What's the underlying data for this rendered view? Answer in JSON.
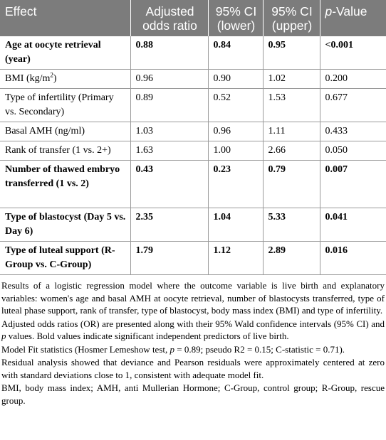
{
  "headers": {
    "effect": "Effect",
    "or_line1": "Adjusted",
    "or_line2": "odds ratio",
    "lower_line1": "95% CI",
    "lower_line2": "(lower)",
    "upper_line1": "95% CI",
    "upper_line2": "(upper)",
    "p_italic": "p",
    "p_rest": "-Value"
  },
  "rows": [
    {
      "effect": "Age at oocyte retrieval (year)",
      "or": "0.88",
      "lower": "0.84",
      "upper": "0.95",
      "p": "<0.001"
    },
    {
      "effect_pre": "BMI (kg/m",
      "effect_sup": "2",
      "effect_post": ")",
      "or": "0.96",
      "lower": "0.90",
      "upper": "1.02",
      "p": "0.200"
    },
    {
      "effect": "Type of infertility (Primary vs. Secondary)",
      "or": "0.89",
      "lower": "0.52",
      "upper": "1.53",
      "p": "0.677"
    },
    {
      "effect": "Basal AMH (ng/ml)",
      "or": "1.03",
      "lower": "0.96",
      "upper": "1.11",
      "p": "0.433"
    },
    {
      "effect": "Rank of transfer (1 vs. 2+)",
      "or": "1.63",
      "lower": "1.00",
      "upper": "2.66",
      "p": "0.050"
    },
    {
      "effect": "Number of thawed embryo transferred (1 vs. 2)",
      "or": "0.43",
      "lower": "0.23",
      "upper": "0.79",
      "p": "0.007"
    },
    {
      "effect": "Type of blastocyst (Day 5 vs. Day 6)",
      "or": "2.35",
      "lower": "1.04",
      "upper": "5.33",
      "p": "0.041"
    },
    {
      "effect": "Type of luteal support (R-Group vs. C-Group)",
      "or": "1.79",
      "lower": "1.12",
      "upper": "2.89",
      "p": "0.016"
    }
  ],
  "notes": {
    "n1": "Results of a logistic regression model where the outcome variable is live birth and explanatory variables: women's age and basal AMH at oocyte retrieval, number of blastocysts transferred, type of luteal phase support, rank of transfer, type of blastocyst, body mass index (BMI) and type of infertility.",
    "n2_a": "Adjusted odds ratios (OR) are presented along with their 95% Wald confidence intervals (95% CI) and ",
    "n2_p": "p",
    "n2_b": " values. Bold values indicate significant independent predictors of live birth.",
    "n3_a": "Model Fit statistics (Hosmer Lemeshow test, ",
    "n3_p": "p",
    "n3_b": " = 0.89; pseudo R2 = 0.15; C-statistic = 0.71).",
    "n4": "Residual analysis showed that deviance and Pearson residuals were approximately centered at zero with standard deviations close to 1, consistent with adequate model fit.",
    "n5": "BMI, body mass index; AMH, anti Mullerian Hormone; C-Group, control group; R-Group, rescue group."
  }
}
